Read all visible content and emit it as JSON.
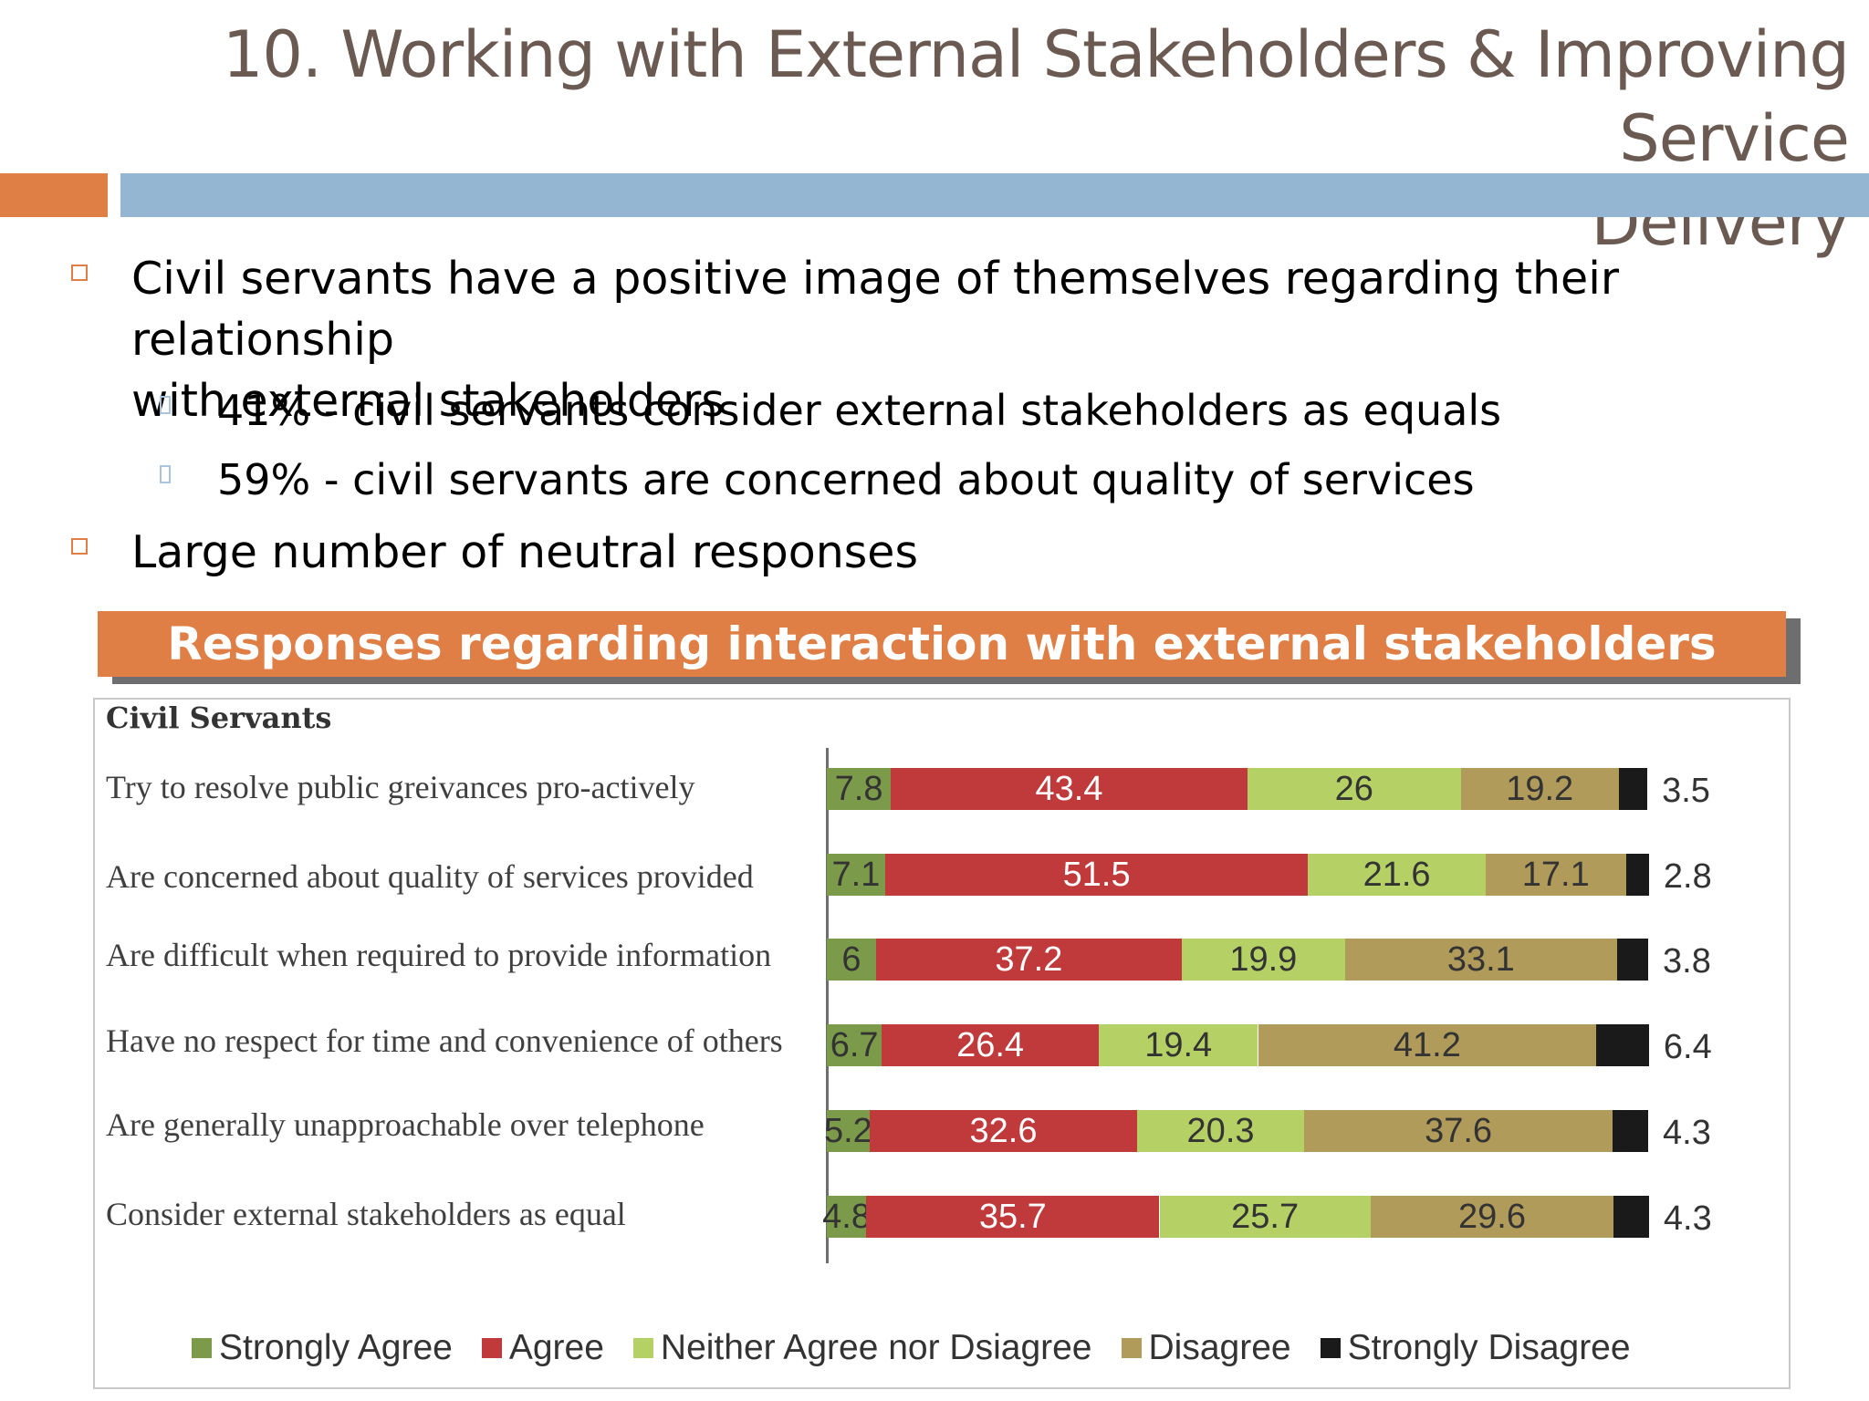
{
  "slide": {
    "title_line1": "10. Working with External Stakeholders & Improving Service",
    "title_line2": "Delivery",
    "accent_colors": {
      "orange": "#df7e45",
      "blue": "#94b6d2"
    },
    "bullets": [
      {
        "text_line1": "Civil servants have a positive image of themselves regarding their relationship",
        "text_line2": "with external stakeholders"
      },
      {
        "text": "41%  - civil servants consider external stakeholders as equals"
      },
      {
        "text": "59% - civil servants are concerned about quality of services"
      },
      {
        "text": "Large number of neutral responses"
      }
    ],
    "banner": "Responses regarding interaction with external stakeholders"
  },
  "chart_data": {
    "type": "bar",
    "orientation": "horizontal",
    "stacked": true,
    "panel_label": "Civil Servants",
    "categories": [
      "Try to resolve public greivances pro-actively",
      "Are concerned about quality of  services provided",
      "Are difficult when required to provide information",
      "Have no respect for time and convenience of others",
      "Are generally unapproachable over telephone",
      "Consider external stakeholders as equal"
    ],
    "series": [
      {
        "name": "Strongly Agree",
        "color": "#7b9a4a",
        "values": [
          7.8,
          7.1,
          6,
          6.7,
          5.2,
          4.8
        ]
      },
      {
        "name": "Agree",
        "color": "#c0393b",
        "values": [
          43.4,
          51.5,
          37.2,
          26.4,
          32.6,
          35.7
        ]
      },
      {
        "name": "Neither Agree nor Dsiagree",
        "color": "#b5d165",
        "values": [
          26,
          21.6,
          19.9,
          19.4,
          20.3,
          25.7
        ]
      },
      {
        "name": "Disagree",
        "color": "#b09b5b",
        "values": [
          19.2,
          17.1,
          33.1,
          41.2,
          37.6,
          29.6
        ]
      },
      {
        "name": "Strongly Disagree",
        "color": "#1a1a1a",
        "values": [
          3.5,
          2.8,
          3.8,
          6.4,
          4.3,
          4.3
        ]
      }
    ],
    "legend_position": "bottom",
    "grid": false
  }
}
